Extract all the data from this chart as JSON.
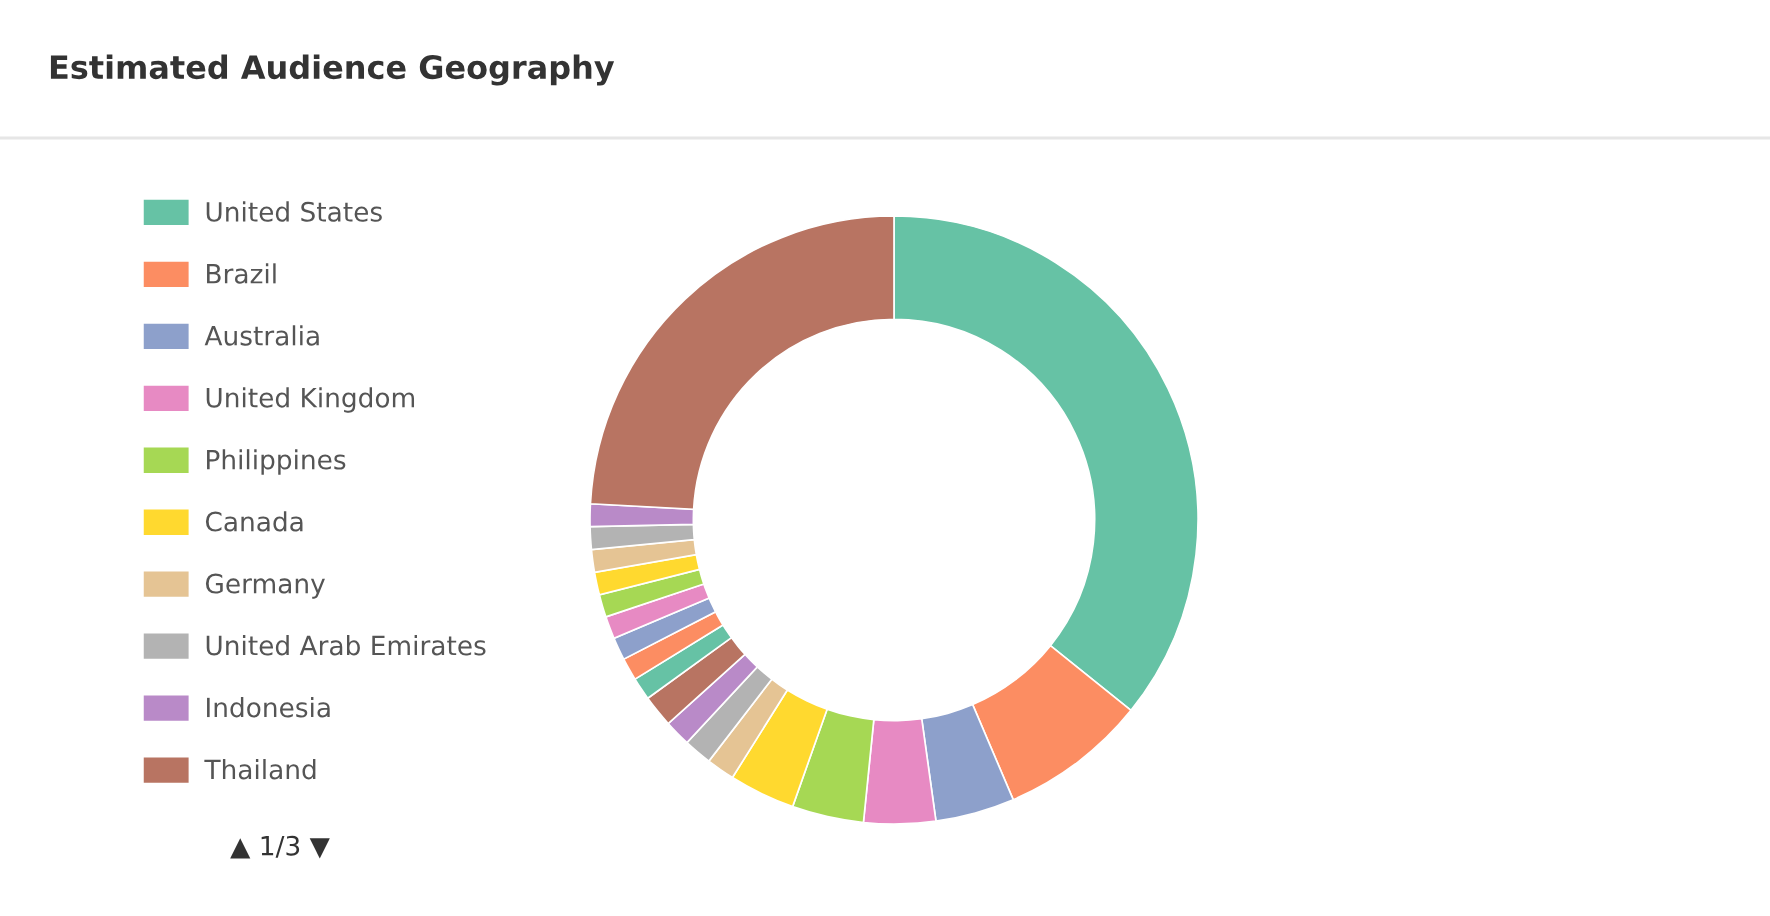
{
  "chart_data": {
    "type": "donut",
    "title": "Estimated Audience Geography",
    "categories": [
      "United States",
      "Brazil",
      "Australia",
      "United Kingdom",
      "Philippines",
      "Canada",
      "Germany",
      "United Arab Emirates",
      "Indonesia",
      "Thailand",
      null,
      null,
      null,
      null,
      null,
      null,
      null,
      null,
      null,
      null
    ],
    "values": [
      35.7,
      7.8,
      4.2,
      3.8,
      3.8,
      3.5,
      1.5,
      1.5,
      1.4,
      1.7,
      1.2,
      1.2,
      1.2,
      1.2,
      1.2,
      1.2,
      1.2,
      1.2,
      1.2,
      24.1
    ],
    "colors": [
      "#66c2a5",
      "#fc8d62",
      "#8da0cb",
      "#e78ac3",
      "#a6d854",
      "#ffd92f",
      "#e5c494",
      "#b3b3b3",
      "#b98ac8",
      "#b87462",
      "#66c2a5",
      "#fc8d62",
      "#8da0cb",
      "#e78ac3",
      "#a6d854",
      "#ffd92f",
      "#e5c494",
      "#b3b3b3",
      "#b98ac8",
      "#b87462"
    ],
    "legend": "left",
    "annotations": [
      "▲ 1/3 ▼"
    ]
  }
}
